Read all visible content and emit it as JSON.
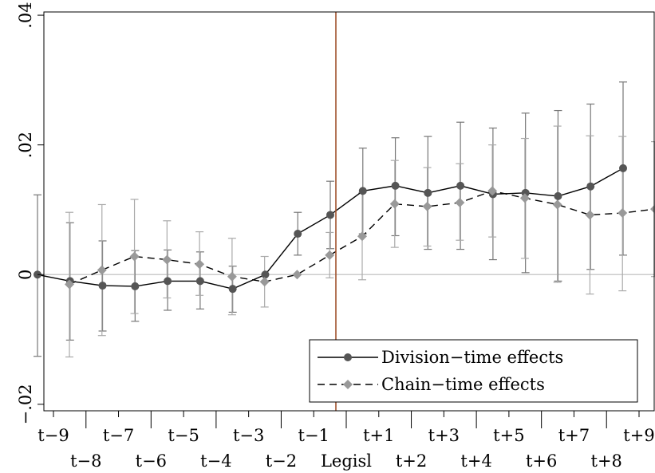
{
  "chart_data": {
    "type": "line",
    "categories": [
      "t-9",
      "t-8",
      "t-7",
      "t-6",
      "t-5",
      "t-4",
      "t-3",
      "t-2",
      "t-1",
      "Legisl",
      "t+1",
      "t+2",
      "t+3",
      "t+4",
      "t+5",
      "t+6",
      "t+7",
      "t+8",
      "t+9"
    ],
    "category_labels": [
      "t−9",
      "t−8",
      "t−7",
      "t−6",
      "t−5",
      "t−4",
      "t−3",
      "t−2",
      "t−1",
      "Legisl",
      "t+1",
      "t+2",
      "t+3",
      "t+4",
      "t+5",
      "t+6",
      "t+7",
      "t+8",
      "t+9"
    ],
    "ylim": [
      -0.021,
      0.0405
    ],
    "yticks": [
      -0.02,
      0,
      0.02,
      0.04
    ],
    "ytick_labels": [
      "−.02",
      "0",
      ".02",
      ".04"
    ],
    "reference_line_category": "Legisl",
    "zero_line": true,
    "legend_position": "bottom-right",
    "series": [
      {
        "name": "Division−time effects",
        "line_style": "solid",
        "marker": "circle",
        "color": "#000000",
        "marker_color": "#555555",
        "ci_color": "#777777",
        "offset": -0.4,
        "values": [
          0.0,
          -0.001,
          -0.0017,
          -0.0018,
          -0.001,
          -0.001,
          -0.0022,
          0.0,
          0.0063,
          0.0092,
          0.0129,
          0.0137,
          0.0126,
          0.0137,
          0.0124,
          0.0126,
          0.0121,
          0.0136,
          0.0164
        ],
        "ci_low": [
          -0.0126,
          -0.0101,
          -0.0087,
          -0.0072,
          -0.0055,
          -0.0053,
          -0.0058,
          null,
          0.003,
          0.004,
          0.0063,
          0.006,
          0.0039,
          0.0039,
          0.0023,
          0.0003,
          -0.001,
          0.0008,
          0.003
        ],
        "ci_high": [
          0.0123,
          0.008,
          0.0052,
          0.0037,
          0.0038,
          0.0035,
          0.0013,
          null,
          0.0096,
          0.0144,
          0.0195,
          0.0211,
          0.0213,
          0.0235,
          0.0226,
          0.0249,
          0.0253,
          0.0263,
          0.0297
        ]
      },
      {
        "name": "Chain−time effects",
        "line_style": "dashed",
        "marker": "diamond",
        "color": "#000000",
        "marker_color": "#999999",
        "ci_color": "#aaaaaa",
        "offset": 0.4,
        "values": [
          -0.0015,
          0.0007,
          0.0028,
          0.0023,
          0.0016,
          -0.0003,
          -0.0011,
          0.0,
          0.003,
          0.0059,
          0.0109,
          0.0105,
          0.0111,
          0.0129,
          0.0118,
          0.0108,
          0.0092,
          0.0095,
          0.0101
        ],
        "ci_low": [
          -0.0127,
          -0.0094,
          -0.006,
          -0.0036,
          -0.0032,
          -0.0062,
          -0.005,
          null,
          -0.0005,
          -0.0008,
          0.0042,
          0.0044,
          0.0053,
          0.0058,
          0.0025,
          -0.0012,
          -0.003,
          -0.0025,
          -0.0003
        ],
        "ci_high": [
          0.0096,
          0.0108,
          0.0116,
          0.0083,
          0.0066,
          0.0056,
          0.0028,
          null,
          0.0065,
          0.0126,
          0.0176,
          0.0165,
          0.0171,
          0.02,
          0.021,
          0.0229,
          0.0214,
          0.0213,
          0.0205
        ]
      }
    ]
  }
}
